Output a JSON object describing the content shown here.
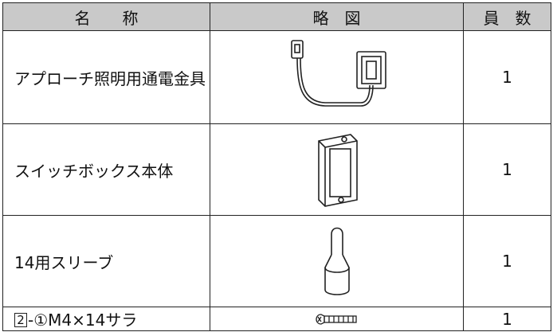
{
  "header": [
    "名　　称",
    "略　図",
    "員　数"
  ],
  "rows": [
    {
      "name": "アプローチ照明用通電金具",
      "count": 1
    },
    {
      "name": "スイッチボックス本体",
      "count": 1
    },
    {
      "name": "14用スリーブ",
      "count": 1
    },
    {
      "name_box": "2",
      "name": "-①M4×14サラ",
      "count": 1
    }
  ]
}
